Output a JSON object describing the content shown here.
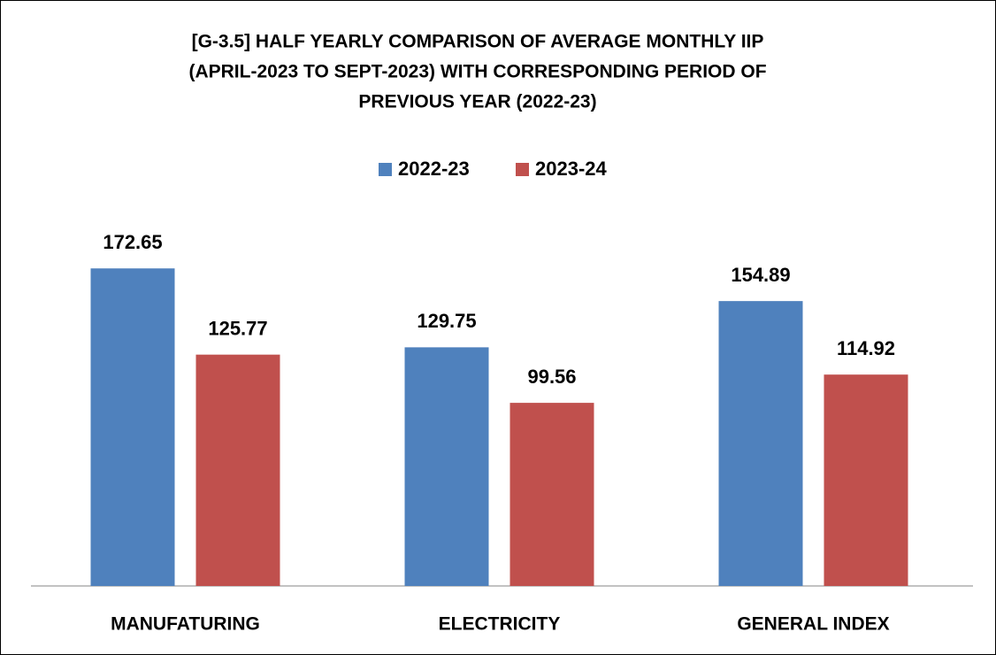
{
  "chart_data": {
    "type": "bar",
    "title": [
      "[G-3.5] HALF YEARLY COMPARISON OF AVERAGE MONTHLY IIP",
      "(APRIL-2023 TO SEPT-2023) WITH CORRESPONDING PERIOD OF",
      "PREVIOUS YEAR (2022-23)"
    ],
    "categories": [
      "MANUFATURING",
      "ELECTRICITY",
      "GENERAL INDEX"
    ],
    "series": [
      {
        "name": "2022-23",
        "color": "#4f81bd",
        "values": [
          172.65,
          129.75,
          154.89
        ]
      },
      {
        "name": "2023-24",
        "color": "#c0504d",
        "values": [
          125.77,
          99.56,
          114.92
        ]
      }
    ],
    "legend": "top"
  }
}
